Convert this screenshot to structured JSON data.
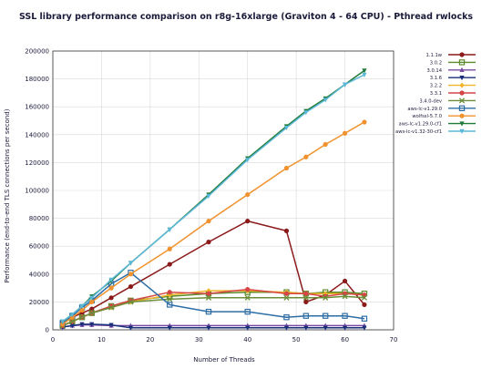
{
  "chart_data": {
    "type": "line",
    "title": "SSL library performance comparison on r8g-16xlarge (Graviton 4 - 64 CPU) - Pthread rwlocks",
    "xlabel": "Number of Threads",
    "ylabel": "Performance (end-to-end TLS connections per second)",
    "xlim": [
      0,
      70
    ],
    "ylim": [
      0,
      200000
    ],
    "xticks": [
      "0",
      "10",
      "20",
      "30",
      "40",
      "50",
      "60",
      "70"
    ],
    "yticks": [
      "0",
      "20000",
      "40000",
      "60000",
      "80000",
      "100000",
      "120000",
      "140000",
      "160000",
      "180000",
      "200000"
    ],
    "grid": true,
    "legend_position": "top-right",
    "x": [
      2,
      4,
      6,
      8,
      12,
      16,
      24,
      32,
      40,
      48,
      52,
      56,
      60,
      64
    ],
    "series": [
      {
        "name": "1.1.1w",
        "color": "#8b1a1a",
        "marker": "circle",
        "values": [
          5000,
          9000,
          12000,
          15000,
          23000,
          31000,
          47000,
          63000,
          78000,
          71000,
          20000,
          25000,
          35000,
          18000
        ]
      },
      {
        "name": "3.0.2",
        "color": "#5b8a2a",
        "marker": "square",
        "values": [
          3000,
          6000,
          9000,
          12000,
          17000,
          21000,
          24000,
          26000,
          27000,
          27000,
          26000,
          27000,
          27000,
          26000
        ]
      },
      {
        "name": "3.0.14",
        "color": "#7a4ba3",
        "marker": "triangle",
        "values": [
          2000,
          3000,
          3500,
          3500,
          3000,
          3000,
          3000,
          3000,
          3000,
          3000,
          3000,
          3000,
          3000,
          3000
        ]
      },
      {
        "name": "3.1.6",
        "color": "#1a2f7a",
        "marker": "triangle-down",
        "values": [
          2000,
          3000,
          4000,
          4000,
          3500,
          1500,
          1500,
          1500,
          1500,
          1500,
          1500,
          1500,
          1500,
          1500
        ]
      },
      {
        "name": "3.2.2",
        "color": "#f0b429",
        "marker": "diamond",
        "values": [
          3000,
          6000,
          9000,
          12000,
          16000,
          20000,
          25000,
          28000,
          28000,
          27000,
          26000,
          26000,
          26000,
          25000
        ]
      },
      {
        "name": "3.3.1",
        "color": "#d64545",
        "marker": "circle",
        "values": [
          3000,
          6000,
          9000,
          12000,
          17000,
          21000,
          27000,
          26000,
          29000,
          26000,
          26000,
          24000,
          26000,
          25000
        ]
      },
      {
        "name": "3.4.0-dev",
        "color": "#6b8e3a",
        "marker": "x",
        "values": [
          3000,
          6000,
          9000,
          12000,
          16000,
          20000,
          22000,
          23000,
          23000,
          23000,
          23000,
          23000,
          24000,
          23000
        ]
      },
      {
        "name": "aws-lc-v1.29.0",
        "color": "#2e6ea6",
        "marker": "square",
        "values": [
          5000,
          10000,
          16000,
          21000,
          33000,
          41000,
          18000,
          13000,
          13000,
          9000,
          10000,
          10000,
          10000,
          8000
        ]
      },
      {
        "name": "wolfssl-5.7.0",
        "color": "#f0922e",
        "marker": "circle",
        "values": [
          4000,
          9000,
          14000,
          20000,
          30000,
          40000,
          58000,
          78000,
          97000,
          116000,
          124000,
          133000,
          141000,
          149000
        ]
      },
      {
        "name": "aws-lc-v1.29.0-cf1",
        "color": "#1f7a3a",
        "marker": "triangle-down",
        "values": [
          6000,
          11000,
          17000,
          24000,
          35000,
          48000,
          72000,
          97000,
          123000,
          146000,
          157000,
          166000,
          176000,
          186000
        ]
      },
      {
        "name": "aws-lc-v1.32-30-cf1",
        "color": "#5bb8d8",
        "marker": "triangle-down",
        "values": [
          6000,
          11000,
          17000,
          23000,
          36000,
          48000,
          72000,
          96000,
          122000,
          145000,
          156000,
          165000,
          176000,
          183000
        ]
      }
    ]
  }
}
